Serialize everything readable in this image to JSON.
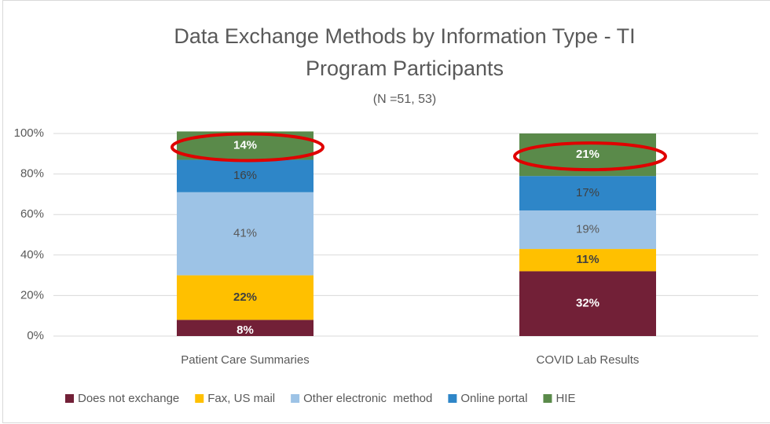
{
  "chart_data": {
    "type": "stacked-bar",
    "title": [
      "Data Exchange Methods by Information Type - TI",
      "Program Participants"
    ],
    "subtitle": "(N =51, 53)",
    "categories": [
      "Patient Care Summaries",
      "COVID Lab Results"
    ],
    "series": [
      {
        "name": "Does not exchange",
        "color": "#722037",
        "values": [
          8,
          32
        ],
        "value_labels": [
          "8%",
          "32%"
        ]
      },
      {
        "name": "Fax, US mail",
        "color": "#FFC000",
        "values": [
          22,
          11
        ],
        "value_labels": [
          "22%",
          "11%"
        ]
      },
      {
        "name": "Other electronic  method",
        "color": "#9DC3E6",
        "values": [
          41,
          19
        ],
        "value_labels": [
          "41%",
          "19%"
        ]
      },
      {
        "name": "Online portal",
        "color": "#2E86C8",
        "values": [
          16,
          17
        ],
        "value_labels": [
          "16%",
          "17%"
        ]
      },
      {
        "name": "HIE",
        "color": "#5A8A4A",
        "values": [
          14,
          21
        ],
        "value_labels": [
          "14%",
          "21%"
        ]
      }
    ],
    "ylim": [
      0,
      100
    ],
    "yticks": [
      {
        "value": 0,
        "label": "0%"
      },
      {
        "value": 20,
        "label": "20%"
      },
      {
        "value": 40,
        "label": "40%"
      },
      {
        "value": 60,
        "label": "60%"
      },
      {
        "value": 80,
        "label": "80%"
      },
      {
        "value": 100,
        "label": "100%"
      }
    ],
    "grid": true
  }
}
